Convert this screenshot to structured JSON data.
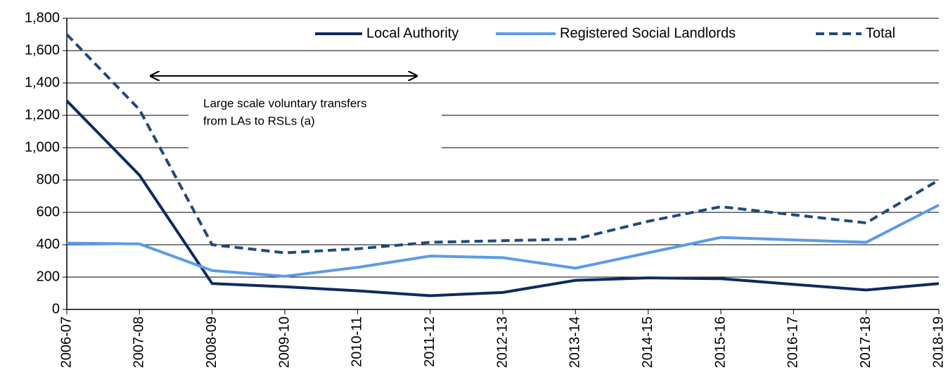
{
  "chart_data": {
    "type": "line",
    "categories": [
      "2006-07",
      "2007-08",
      "2008-09",
      "2009-10",
      "2010-11",
      "2011-12",
      "2012-13",
      "2013-14",
      "2014-15",
      "2015-16",
      "2016-17",
      "2017-18",
      "2018-19"
    ],
    "series": [
      {
        "name": "Local Authority",
        "color": "#0e2b5e",
        "linestyle": "solid",
        "values": [
          1290,
          830,
          160,
          140,
          115,
          85,
          105,
          180,
          195,
          190,
          155,
          120,
          160
        ]
      },
      {
        "name": "Registered Social Landlords",
        "color": "#5c9be8",
        "linestyle": "solid",
        "values": [
          410,
          405,
          240,
          205,
          260,
          330,
          320,
          255,
          350,
          445,
          430,
          415,
          645
        ]
      },
      {
        "name": "Total",
        "color": "#1f4a7e",
        "linestyle": "dashed",
        "values": [
          1700,
          1235,
          400,
          350,
          375,
          415,
          425,
          435,
          545,
          635,
          585,
          535,
          800
        ]
      }
    ],
    "ylim": [
      0,
      1800
    ],
    "yticks": [
      0,
      200,
      400,
      600,
      800,
      {
        "value": 1000,
        "label": "1,000"
      },
      {
        "value": 1200,
        "label": "1,200"
      },
      {
        "value": 1400,
        "label": "1,400"
      },
      {
        "value": 1600,
        "label": "1,600"
      },
      {
        "value": 1800,
        "label": "1,800"
      }
    ],
    "grid": true,
    "legend": "top",
    "annotation": [
      "Large scale voluntary transfers",
      "from LAs to RSLs (a)"
    ]
  }
}
